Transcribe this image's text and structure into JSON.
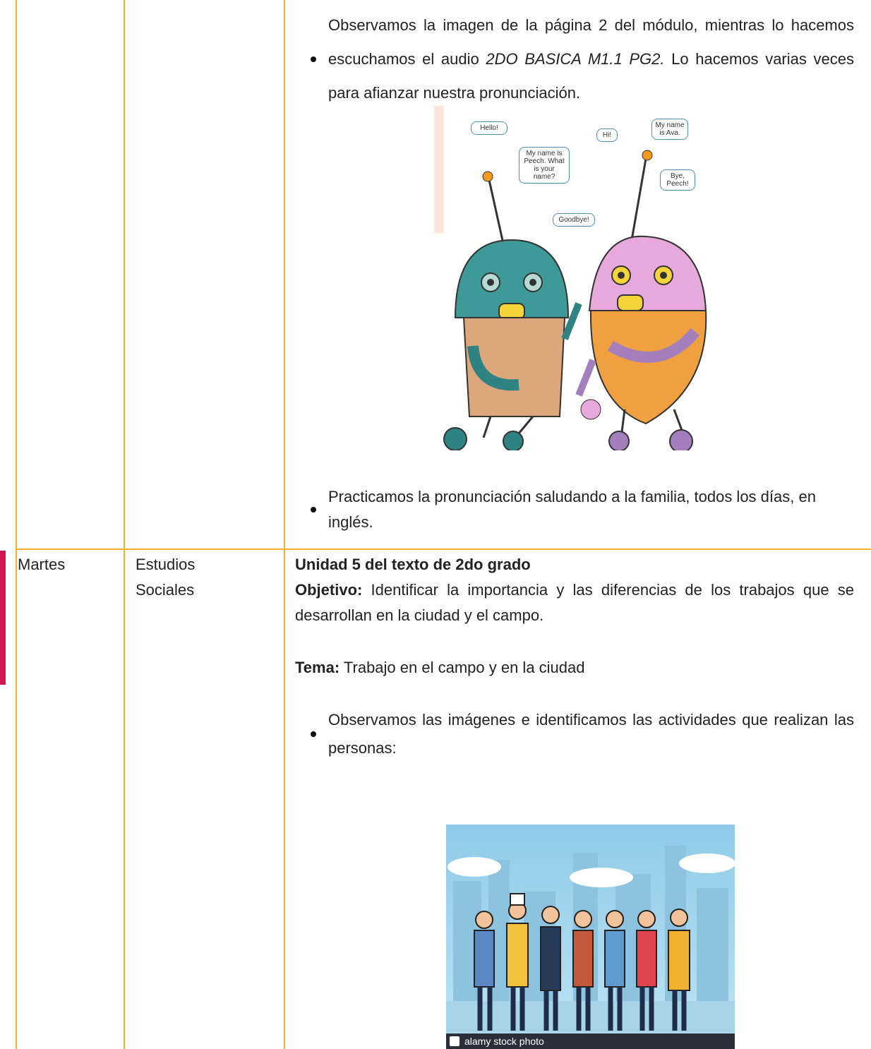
{
  "table": {
    "rows": [
      {
        "content": {
          "bullets": [
            {
              "parts": [
                "Observamos la imagen de la página 2 del módulo, mientras lo hacemos escuchamos el audio ",
                "2DO BASICA M1.1 PG2.",
                " Lo hacemos varias veces para afianzar nuestra pronunciación."
              ]
            },
            {
              "parts": [
                "Practicamos la pronunciación saludando a la familia, todos los días, en inglés."
              ]
            }
          ],
          "image": {
            "bubbles": [
              "Hello!",
              "Hi!",
              "My name is Ava.",
              "My name is Peech. What is your name?",
              "Bye, Peech!",
              "Goodbye!"
            ]
          }
        }
      },
      {
        "day": "Martes",
        "subject": "Estudios Sociales",
        "content": {
          "heading": "Unidad 5 del texto de 2do grado",
          "objective_label": "Objetivo:",
          "objective": " Identificar la importancia y las diferencias de los trabajos que se desarrollan en la ciudad y el campo.",
          "topic_label": "Tema:",
          "topic": " Trabajo en el campo y en la ciudad",
          "bullets": [
            {
              "parts": [
                "Observamos las imágenes e identificamos las actividades que realizan las personas:"
              ]
            }
          ],
          "image": {
            "watermark": "alamy stock photo"
          }
        }
      }
    ]
  }
}
